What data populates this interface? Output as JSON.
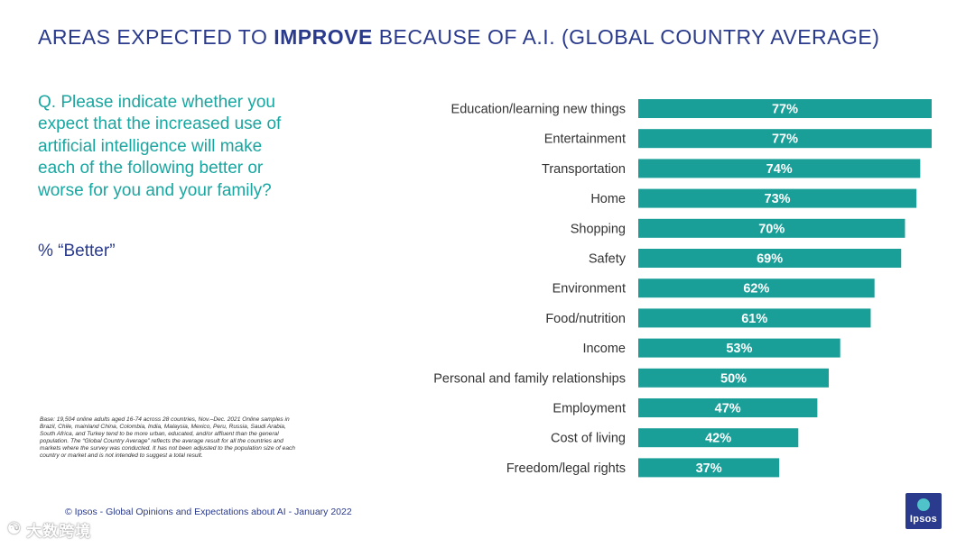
{
  "header": {
    "title_pre": "AREAS EXPECTED TO ",
    "title_emph": "IMPROVE",
    "title_post": " BECAUSE OF A.I. (GLOBAL COUNTRY AVERAGE)"
  },
  "question": {
    "text": "Q. Please indicate whether you expect that the increased use of artificial intelligence will make each of the following better or worse for you and your family?",
    "measure": "% “Better”"
  },
  "note": {
    "base": "Base: 19,504 online adults aged 16-74 across 28 countries, Nov.–Dec. 2021 Online samples in Brazil, Chile, mainland China, Colombia, India, Malaysia, Mexico, Peru, Russia, Saudi Arabia, South Africa, and Turkey tend to be more urban, educated, and/or affluent than the general population. The “Global  Country Average” reflects the average result for all the countries and markets where the survey was conducted. It has not been adjusted to the population size of each country or market and is not intended to suggest a total result."
  },
  "footer": {
    "text": "© Ipsos - Global Opinions and Expectations about AI - January 2022"
  },
  "logo": {
    "text": "Ipsos"
  },
  "watermark": {
    "text": "大数跨境",
    "glyph": "☯"
  },
  "colors": {
    "bar": "#199e98",
    "title": "#2a3a8c",
    "question": "#1aa6a0"
  },
  "chart_data": {
    "type": "bar",
    "orientation": "horizontal",
    "title": "AREAS EXPECTED TO IMPROVE BECAUSE OF A.I. (GLOBAL COUNTRY AVERAGE)",
    "ylabel": "% “Better”",
    "xlim": [
      0,
      77
    ],
    "categories": [
      "Education/learning new things",
      "Entertainment",
      "Transportation",
      "Home",
      "Shopping",
      "Safety",
      "Environment",
      "Food/nutrition",
      "Income",
      "Personal and family relationships",
      "Employment",
      "Cost of living",
      "Freedom/legal rights"
    ],
    "values": [
      77,
      77,
      74,
      73,
      70,
      69,
      62,
      61,
      53,
      50,
      47,
      42,
      37
    ],
    "value_labels": [
      "77%",
      "77%",
      "74%",
      "73%",
      "70%",
      "69%",
      "62%",
      "61%",
      "53%",
      "50%",
      "47%",
      "42%",
      "37%"
    ]
  }
}
